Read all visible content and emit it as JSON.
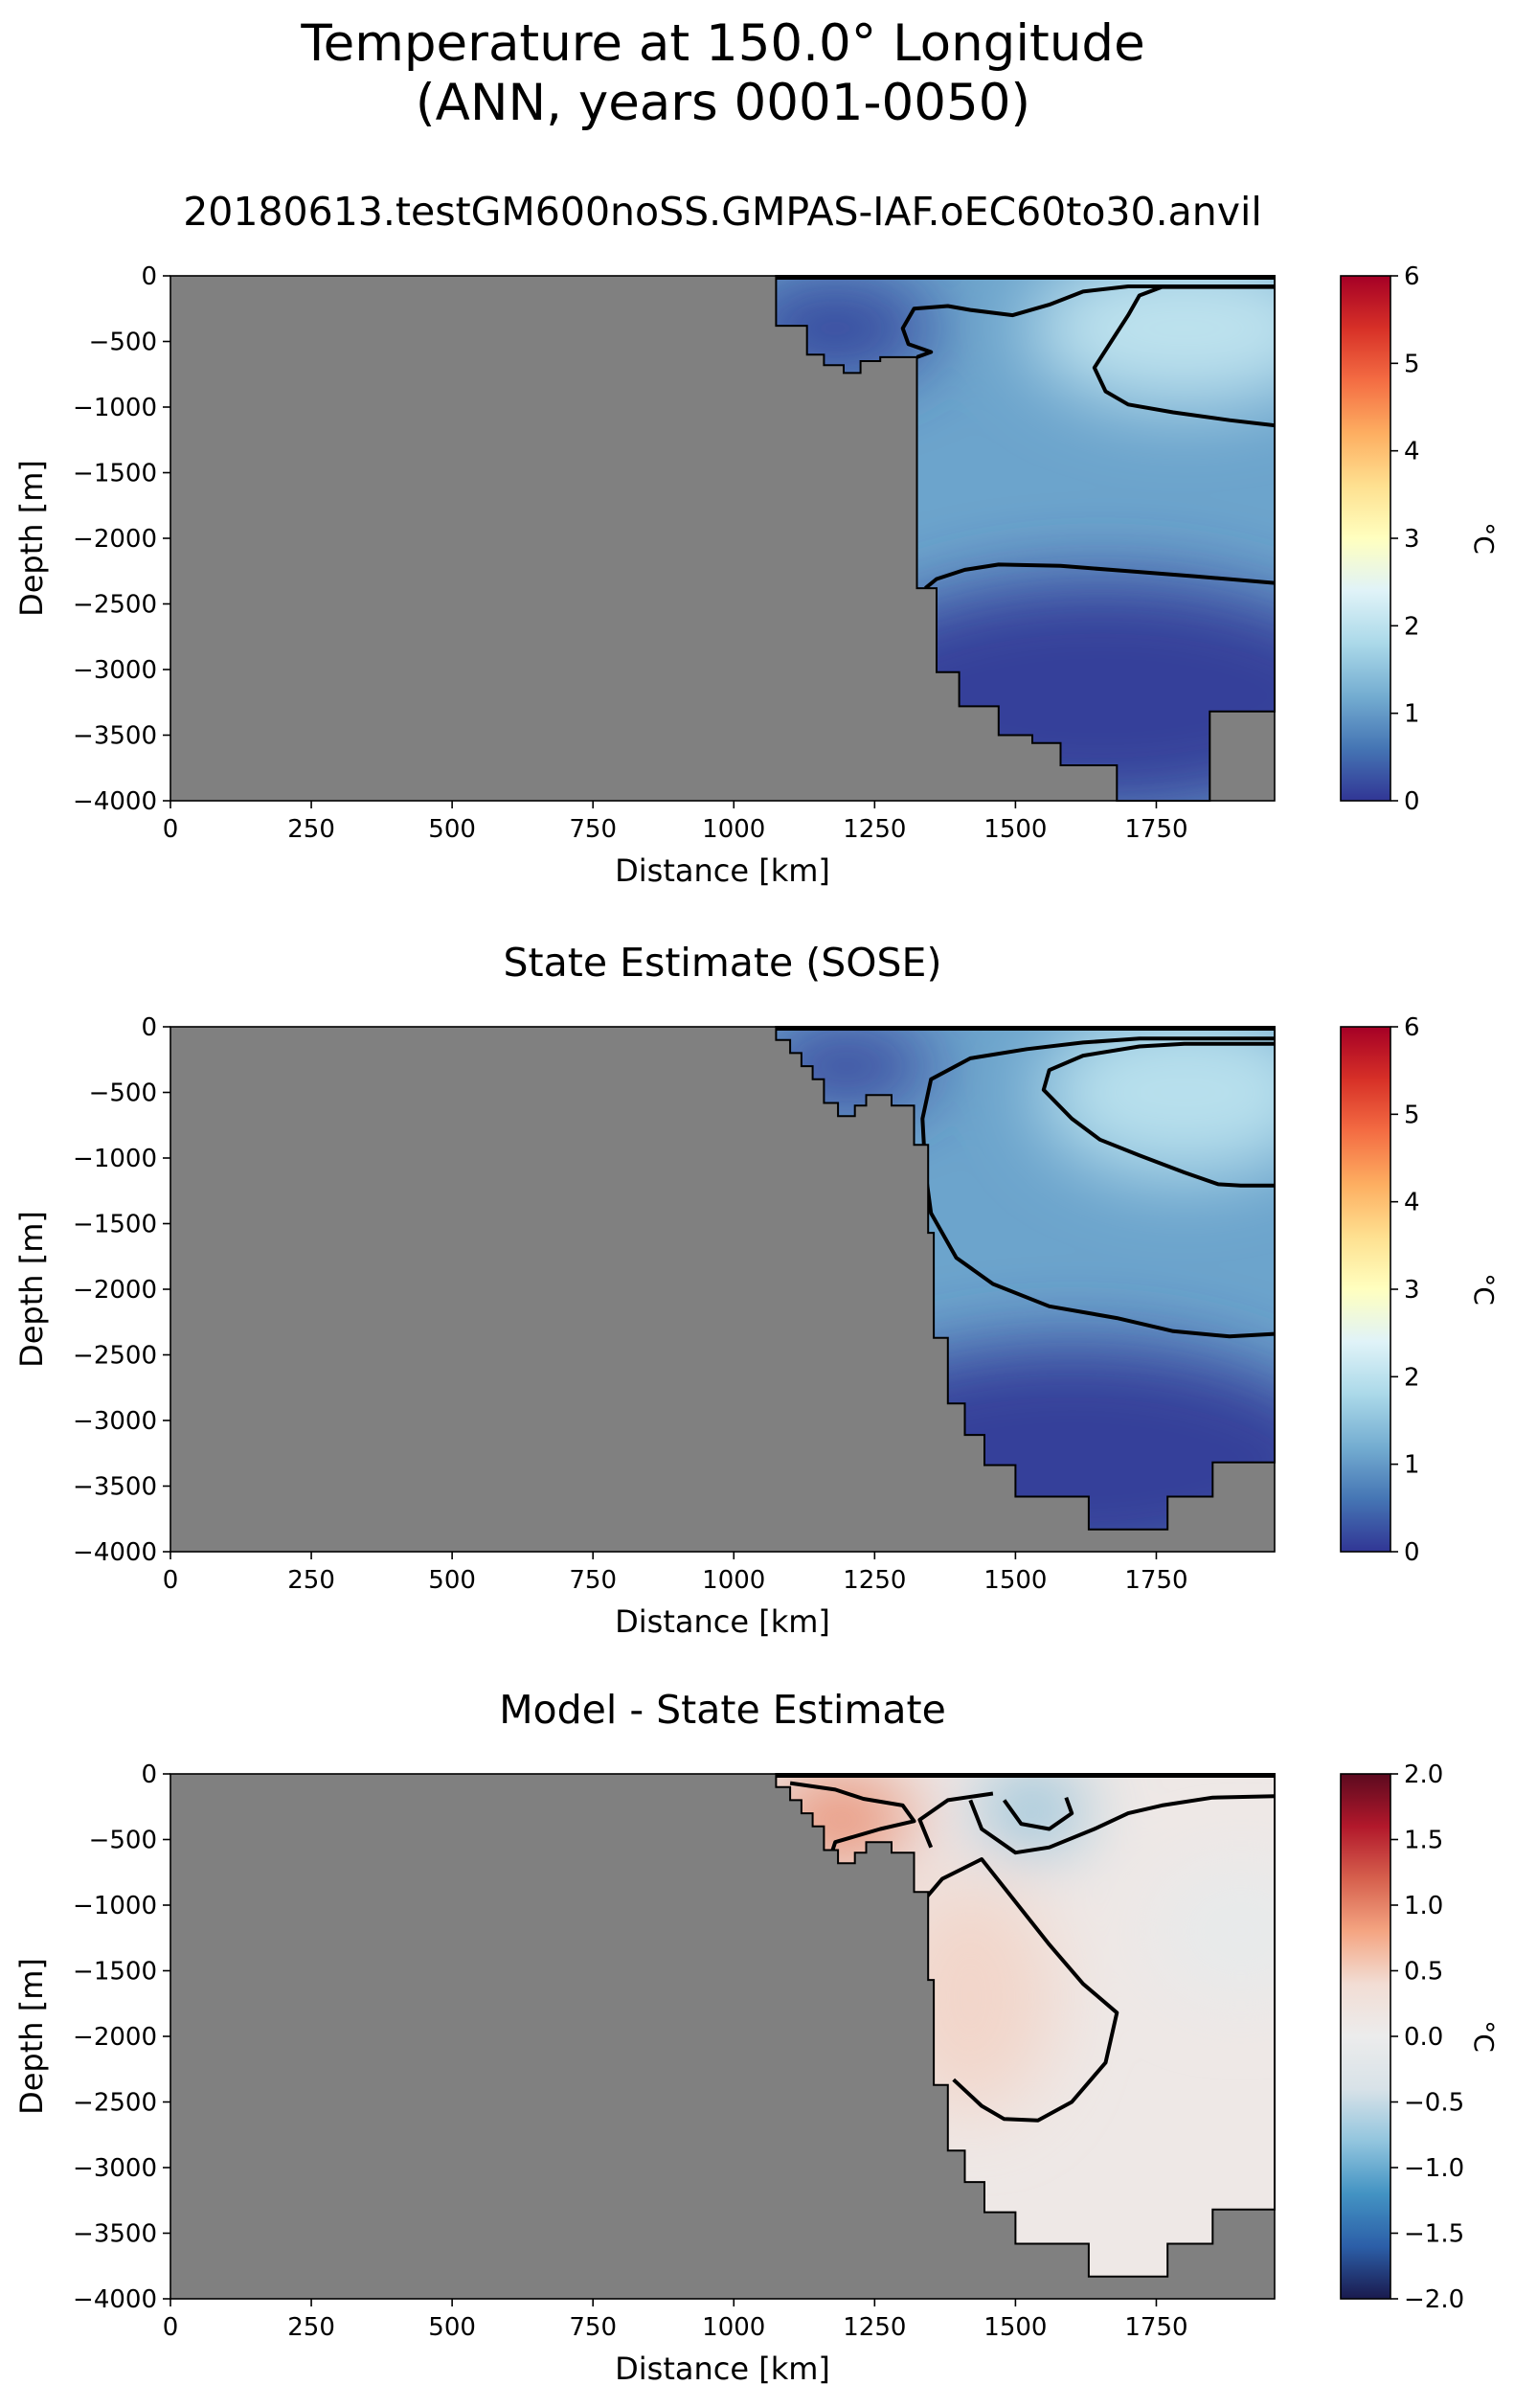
{
  "figure": {
    "title_line1": "Temperature at 150.0° Longitude",
    "title_line2": "(ANN, years 0001-0050)"
  },
  "chart_data": [
    {
      "type": "heatmap",
      "title": "20180613.testGM600noSS.GMPAS-IAF.oEC60to30.anvil",
      "xlabel": "Distance [km]",
      "ylabel": "Depth [m]",
      "xlim": [
        0,
        1960
      ],
      "ylim": [
        -4000,
        0
      ],
      "xticks": [
        0,
        250,
        500,
        750,
        1000,
        1250,
        1500,
        1750
      ],
      "yticks": [
        0,
        -500,
        -1000,
        -1500,
        -2000,
        -2500,
        -3000,
        -3500,
        -4000
      ],
      "colorbar": {
        "label": "°C",
        "min": 0,
        "max": 6,
        "ticks": [
          0,
          1,
          2,
          3,
          4,
          5,
          6
        ],
        "cmap": "RdYlBu_r"
      },
      "contour_levels": [
        0.5,
        1.5
      ],
      "bathymetry": [
        [
          1075,
          0
        ],
        [
          1075,
          -380
        ],
        [
          1130,
          -380
        ],
        [
          1130,
          -600
        ],
        [
          1160,
          -600
        ],
        [
          1160,
          -680
        ],
        [
          1195,
          -680
        ],
        [
          1195,
          -740
        ],
        [
          1225,
          -740
        ],
        [
          1225,
          -650
        ],
        [
          1260,
          -650
        ],
        [
          1260,
          -620
        ],
        [
          1325,
          -620
        ],
        [
          1325,
          -2380
        ],
        [
          1360,
          -2380
        ],
        [
          1360,
          -3020
        ],
        [
          1400,
          -3020
        ],
        [
          1400,
          -3280
        ],
        [
          1470,
          -3280
        ],
        [
          1470,
          -3500
        ],
        [
          1530,
          -3500
        ],
        [
          1530,
          -3560
        ],
        [
          1580,
          -3560
        ],
        [
          1580,
          -3730
        ],
        [
          1680,
          -3730
        ],
        [
          1680,
          -4000
        ],
        [
          1845,
          -4000
        ],
        [
          1845,
          -3320
        ],
        [
          1960,
          -3320
        ],
        [
          1960,
          0
        ]
      ],
      "contours": [
        [
          [
            1325,
            -620
          ],
          [
            1350,
            -580
          ],
          [
            1310,
            -520
          ],
          [
            1300,
            -400
          ],
          [
            1320,
            -250
          ],
          [
            1380,
            -230
          ],
          [
            1420,
            -260
          ],
          [
            1495,
            -300
          ],
          [
            1560,
            -220
          ],
          [
            1620,
            -120
          ],
          [
            1700,
            -80
          ],
          [
            1960,
            -80
          ]
        ],
        [
          [
            1960,
            -1140
          ],
          [
            1880,
            -1100
          ],
          [
            1780,
            -1040
          ],
          [
            1700,
            -980
          ],
          [
            1660,
            -880
          ],
          [
            1640,
            -700
          ],
          [
            1670,
            -500
          ],
          [
            1700,
            -300
          ],
          [
            1720,
            -150
          ],
          [
            1760,
            -85
          ],
          [
            1960,
            -85
          ]
        ],
        [
          [
            1340,
            -2380
          ],
          [
            1360,
            -2310
          ],
          [
            1410,
            -2240
          ],
          [
            1470,
            -2200
          ],
          [
            1580,
            -2210
          ],
          [
            1700,
            -2250
          ],
          [
            1820,
            -2290
          ],
          [
            1960,
            -2340
          ]
        ]
      ],
      "field": {
        "background": 1.1,
        "blobs": [
          {
            "x": 1800,
            "y": -400,
            "v": 2.0,
            "rx": 280,
            "ry": 600
          },
          {
            "x": 1180,
            "y": -400,
            "v": 0.15,
            "rx": 180,
            "ry": 400
          },
          {
            "x": 1650,
            "y": -3200,
            "v": 0.1,
            "rx": 500,
            "ry": 900
          }
        ]
      }
    },
    {
      "type": "heatmap",
      "title": "State Estimate (SOSE)",
      "xlabel": "Distance [km]",
      "ylabel": "Depth [m]",
      "xlim": [
        0,
        1960
      ],
      "ylim": [
        -4000,
        0
      ],
      "xticks": [
        0,
        250,
        500,
        750,
        1000,
        1250,
        1500,
        1750
      ],
      "yticks": [
        0,
        -500,
        -1000,
        -1500,
        -2000,
        -2500,
        -3000,
        -3500,
        -4000
      ],
      "colorbar": {
        "label": "°C",
        "min": 0,
        "max": 6,
        "ticks": [
          0,
          1,
          2,
          3,
          4,
          5,
          6
        ],
        "cmap": "RdYlBu_r"
      },
      "contour_levels": [
        0.5,
        1.5
      ],
      "bathymetry": [
        [
          1075,
          0
        ],
        [
          1075,
          -100
        ],
        [
          1100,
          -100
        ],
        [
          1100,
          -200
        ],
        [
          1120,
          -200
        ],
        [
          1120,
          -300
        ],
        [
          1140,
          -300
        ],
        [
          1140,
          -400
        ],
        [
          1160,
          -400
        ],
        [
          1160,
          -580
        ],
        [
          1185,
          -580
        ],
        [
          1185,
          -680
        ],
        [
          1215,
          -680
        ],
        [
          1215,
          -600
        ],
        [
          1235,
          -600
        ],
        [
          1235,
          -520
        ],
        [
          1280,
          -520
        ],
        [
          1280,
          -600
        ],
        [
          1320,
          -600
        ],
        [
          1320,
          -900
        ],
        [
          1345,
          -900
        ],
        [
          1345,
          -1570
        ],
        [
          1355,
          -1570
        ],
        [
          1355,
          -2370
        ],
        [
          1380,
          -2370
        ],
        [
          1380,
          -2870
        ],
        [
          1410,
          -2870
        ],
        [
          1410,
          -3110
        ],
        [
          1445,
          -3110
        ],
        [
          1445,
          -3340
        ],
        [
          1500,
          -3340
        ],
        [
          1500,
          -3580
        ],
        [
          1630,
          -3580
        ],
        [
          1630,
          -3830
        ],
        [
          1770,
          -3830
        ],
        [
          1770,
          -3580
        ],
        [
          1850,
          -3580
        ],
        [
          1850,
          -3320
        ],
        [
          1960,
          -3320
        ],
        [
          1960,
          0
        ]
      ],
      "contours": [
        [
          [
            1960,
            -2340
          ],
          [
            1880,
            -2360
          ],
          [
            1780,
            -2320
          ],
          [
            1680,
            -2220
          ],
          [
            1560,
            -2130
          ],
          [
            1460,
            -1960
          ],
          [
            1395,
            -1760
          ],
          [
            1350,
            -1420
          ],
          [
            1340,
            -1100
          ],
          [
            1335,
            -700
          ],
          [
            1350,
            -400
          ],
          [
            1420,
            -240
          ],
          [
            1520,
            -170
          ],
          [
            1620,
            -120
          ],
          [
            1720,
            -90
          ],
          [
            1960,
            -90
          ]
        ],
        [
          [
            1960,
            -1210
          ],
          [
            1900,
            -1210
          ],
          [
            1860,
            -1200
          ],
          [
            1800,
            -1110
          ],
          [
            1720,
            -980
          ],
          [
            1650,
            -860
          ],
          [
            1600,
            -700
          ],
          [
            1550,
            -480
          ],
          [
            1560,
            -330
          ],
          [
            1620,
            -220
          ],
          [
            1720,
            -150
          ],
          [
            1800,
            -130
          ],
          [
            1960,
            -130
          ]
        ]
      ],
      "field": {
        "background": 1.1,
        "blobs": [
          {
            "x": 1800,
            "y": -500,
            "v": 1.95,
            "rx": 260,
            "ry": 650
          },
          {
            "x": 1200,
            "y": -300,
            "v": 0.1,
            "rx": 160,
            "ry": 300
          },
          {
            "x": 1600,
            "y": -3300,
            "v": 0.1,
            "rx": 500,
            "ry": 900
          }
        ]
      }
    },
    {
      "type": "heatmap",
      "title": "Model - State Estimate",
      "xlabel": "Distance [km]",
      "ylabel": "Depth [m]",
      "xlim": [
        0,
        1960
      ],
      "ylim": [
        -4000,
        0
      ],
      "xticks": [
        0,
        250,
        500,
        750,
        1000,
        1250,
        1500,
        1750
      ],
      "yticks": [
        0,
        -500,
        -1000,
        -1500,
        -2000,
        -2500,
        -3000,
        -3500,
        -4000
      ],
      "colorbar": {
        "label": "°C",
        "min": -2.0,
        "max": 2.0,
        "ticks": [
          -2.0,
          -1.5,
          -1.0,
          -0.5,
          0.0,
          0.5,
          1.0,
          1.5,
          2.0
        ],
        "cmap": "RdBu_r"
      },
      "contour_levels": [
        -0.5,
        0.1,
        0.5
      ],
      "bathymetry": [
        [
          1075,
          0
        ],
        [
          1075,
          -100
        ],
        [
          1100,
          -100
        ],
        [
          1100,
          -200
        ],
        [
          1120,
          -200
        ],
        [
          1120,
          -300
        ],
        [
          1140,
          -300
        ],
        [
          1140,
          -400
        ],
        [
          1160,
          -400
        ],
        [
          1160,
          -580
        ],
        [
          1185,
          -580
        ],
        [
          1185,
          -680
        ],
        [
          1215,
          -680
        ],
        [
          1215,
          -600
        ],
        [
          1235,
          -600
        ],
        [
          1235,
          -520
        ],
        [
          1280,
          -520
        ],
        [
          1280,
          -600
        ],
        [
          1320,
          -600
        ],
        [
          1320,
          -900
        ],
        [
          1345,
          -900
        ],
        [
          1345,
          -1570
        ],
        [
          1355,
          -1570
        ],
        [
          1355,
          -2370
        ],
        [
          1380,
          -2370
        ],
        [
          1380,
          -2870
        ],
        [
          1410,
          -2870
        ],
        [
          1410,
          -3110
        ],
        [
          1445,
          -3110
        ],
        [
          1445,
          -3340
        ],
        [
          1500,
          -3340
        ],
        [
          1500,
          -3580
        ],
        [
          1630,
          -3580
        ],
        [
          1630,
          -3830
        ],
        [
          1770,
          -3830
        ],
        [
          1770,
          -3580
        ],
        [
          1850,
          -3580
        ],
        [
          1850,
          -3320
        ],
        [
          1960,
          -3320
        ],
        [
          1960,
          0
        ]
      ],
      "contours": [
        [
          [
            1170,
            -650
          ],
          [
            1180,
            -520
          ],
          [
            1260,
            -420
          ],
          [
            1320,
            -360
          ],
          [
            1300,
            -240
          ],
          [
            1230,
            -190
          ],
          [
            1180,
            -120
          ],
          [
            1100,
            -70
          ]
        ],
        [
          [
            1350,
            -560
          ],
          [
            1330,
            -350
          ],
          [
            1380,
            -200
          ],
          [
            1460,
            -150
          ]
        ],
        [
          [
            1420,
            -200
          ],
          [
            1440,
            -420
          ],
          [
            1500,
            -600
          ],
          [
            1560,
            -560
          ],
          [
            1640,
            -420
          ],
          [
            1700,
            -300
          ],
          [
            1760,
            -240
          ],
          [
            1850,
            -180
          ],
          [
            1960,
            -170
          ]
        ],
        [
          [
            1480,
            -200
          ],
          [
            1510,
            -380
          ],
          [
            1560,
            -420
          ],
          [
            1600,
            -300
          ],
          [
            1590,
            -180
          ]
        ],
        [
          [
            1340,
            -950
          ],
          [
            1370,
            -800
          ],
          [
            1440,
            -650
          ],
          [
            1560,
            -1300
          ],
          [
            1620,
            -1600
          ],
          [
            1680,
            -1820
          ],
          [
            1660,
            -2200
          ],
          [
            1600,
            -2500
          ],
          [
            1540,
            -2640
          ],
          [
            1480,
            -2630
          ],
          [
            1440,
            -2530
          ],
          [
            1390,
            -2330
          ]
        ]
      ],
      "field": {
        "background": 0.1,
        "blobs": [
          {
            "x": 1190,
            "y": -350,
            "v": 0.95,
            "rx": 130,
            "ry": 330
          },
          {
            "x": 1420,
            "y": -1700,
            "v": 0.45,
            "rx": 150,
            "ry": 900
          },
          {
            "x": 1530,
            "y": -280,
            "v": -0.9,
            "rx": 90,
            "ry": 260
          },
          {
            "x": 1900,
            "y": -1200,
            "v": -0.1,
            "rx": 150,
            "ry": 500
          }
        ]
      }
    }
  ]
}
